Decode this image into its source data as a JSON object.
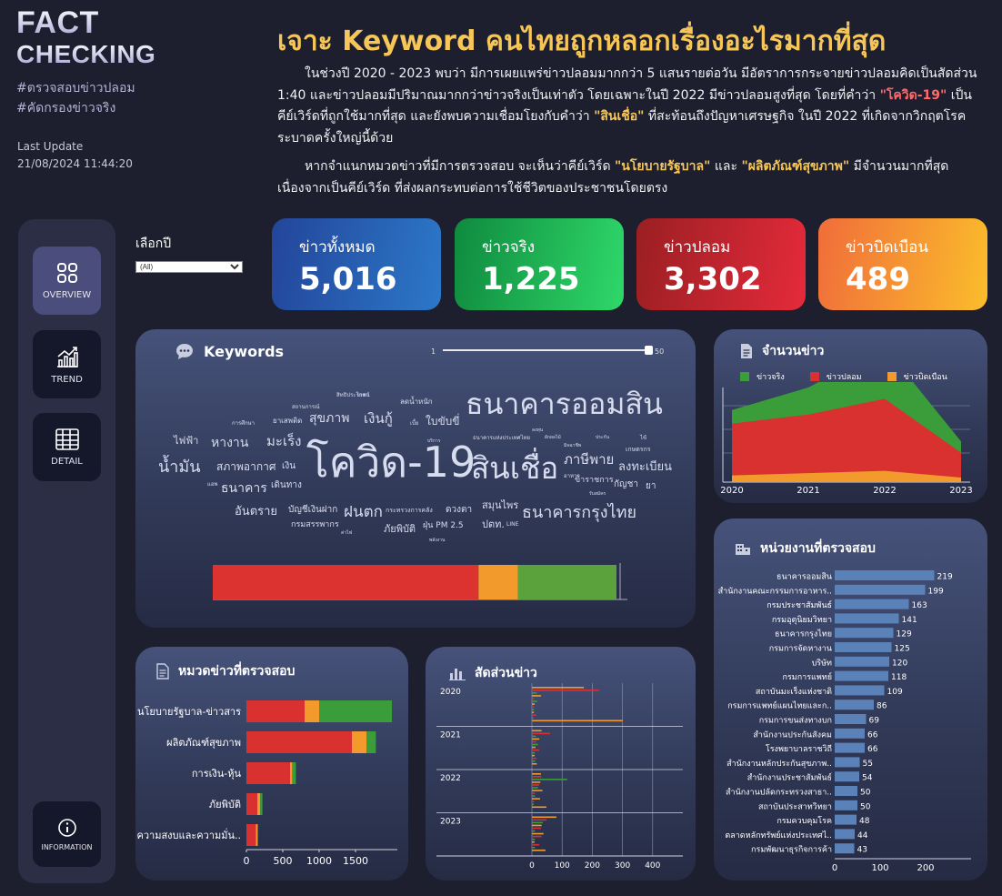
{
  "brand": {
    "line1": "FACT",
    "line2": "CHECKING",
    "tag1": "#ตรวจสอบข่าวปลอม",
    "tag2": "#คัดกรองข่าวจริง"
  },
  "update": {
    "label": "Last Update",
    "value": "21/08/2024 11:44:20"
  },
  "headline": "เจาะ Keyword คนไทยถูกหลอกเรื่องอะไรมากที่สุด",
  "para1": {
    "a": "ในช่วงปี 2020 - 2023 พบว่า มีการเผยแพร่ข่าวปลอมมากกว่า 5 แสนรายต่อวัน มีอัตราการกระจายข่าวปลอมคิดเป็นสัดส่วน 1:40 และข่าวปลอมมีปริมาณมากกว่าข่าวจริงเป็นเท่าตัว โดยเฉพาะในปี 2022 มีข่าวปลอมสูงที่สุด โดยที่คำว่า ",
    "k1": "\"โควิด-19\"",
    "b": " เป็นคีย์เวิร์ดที่ถูกใช้มากที่สุด และยังพบความเชื่อมโยงกับคำว่า ",
    "k2": "\"สินเชื่อ\"",
    "c": " ที่สะท้อนถึงปัญหาเศรษฐกิจ ในปี 2022 ที่เกิดจากวิกฤตโรคระบาดครั้งใหญ่นี้ด้วย"
  },
  "para2": {
    "a": "หากจำแนกหมวดข่าวที่มีการตรวจสอบ จะเห็นว่าคีย์เวิร์ด ",
    "k1": "\"นโยบายรัฐบาล\"",
    "b": " และ ",
    "k2": "\"ผลิตภัณฑ์สุขภาพ\"",
    "c": " มีจำนวนมากที่สุด เนื่องจากเป็นคีย์เวิร์ด ที่ส่งผลกระทบต่อการใช้ชีวิตของประชาชนโดยตรง"
  },
  "colors": {
    "accent": "#f6c659",
    "covid": "#ff6b6b",
    "real": "#3a9d3a",
    "fake": "#d93030",
    "distort": "#f39a2c"
  },
  "nav": [
    {
      "label": "OVERVIEW",
      "icon": "grid-icon"
    },
    {
      "label": "TREND",
      "icon": "trend-chart-icon"
    },
    {
      "label": "DETAIL",
      "icon": "table-icon"
    },
    {
      "label": "INFORMATION",
      "icon": "info-icon"
    }
  ],
  "filter": {
    "label": "เลือกปี",
    "selected": "(All)"
  },
  "kpis": [
    {
      "label": "ข่าวทั้งหมด",
      "value": "5,016"
    },
    {
      "label": "ข่าวจริง",
      "value": "1,225"
    },
    {
      "label": "ข่าวปลอม",
      "value": "3,302"
    },
    {
      "label": "ข่าวบิดเบือน",
      "value": "489"
    }
  ],
  "keywords": {
    "title": "Keywords",
    "slider_min": "1",
    "slider_max": "50",
    "cloud": [
      "ธนาคารออมสิน",
      "โควิด-19",
      "สินเชื่อ",
      "ธนาคารกรุงไทย",
      "ภาษีพาย",
      "ลงทะเบียน",
      "น้ำมัน",
      "หางาน",
      "มะเร็ง",
      "เงินกู้",
      "ใบขับขี่",
      "สุขภาพ",
      "ไฟฟ้า",
      "สภาพอากาศ",
      "เงิน",
      "ธนาคาร",
      "เดินทาง",
      "อันตราย",
      "บัญชีเงินฝาก",
      "ฝนตก",
      "ดวงตา",
      "สมุนไพร",
      "ปตท.",
      "ภัยพิบัติ",
      "ฝุ่น PM 2.5",
      "กรมสรรพากร",
      "กระทรวงการคลัง",
      "ลดน้ำหนัก",
      "ยาเสพติด",
      "ธนาคารแห่งประเทศไทย",
      "ข้าราชการ",
      "กัญชา",
      "ยา",
      "เกษตรกร",
      "LINE",
      "การศึกษา",
      "สิทธิประโยชน์",
      "ผักผลไม้",
      "มิจฉาชีพ",
      "ประกัน",
      "แอพ",
      "เบี้ย",
      "พลังงาน",
      "ค่าไฟ",
      "สถานการณ์",
      "บริการ",
      "รับสมัคร",
      "อาหาร",
      "ราคา",
      "ลงทุน",
      "ไข้"
    ],
    "bar": {
      "fake": 3302,
      "distort": 489,
      "real": 1225,
      "total": 5016
    }
  },
  "news_count": {
    "title": "จำนวนข่าว",
    "legend": [
      "ข่าวจริง",
      "ข่าวปลอม",
      "ข่าวบิดเบือน"
    ]
  },
  "categories": {
    "title": "หมวดข่าวที่ตรวจสอบ"
  },
  "ratio": {
    "title": "สัดส่วนข่าว"
  },
  "agencies": {
    "title": "หน่วยงานที่ตรวจสอบ"
  },
  "chart_data": [
    {
      "type": "area",
      "title": "จำนวนข่าว",
      "x": [
        "2020",
        "2021",
        "2022",
        "2023"
      ],
      "series": [
        {
          "name": "ข่าวจริง",
          "values": [
            60,
            120,
            230,
            50
          ]
        },
        {
          "name": "ข่าวปลอม",
          "values": [
            260,
            300,
            370,
            130
          ]
        },
        {
          "name": "ข่าวบิดเบือน",
          "values": [
            30,
            40,
            50,
            20
          ]
        }
      ]
    },
    {
      "type": "bar",
      "title": "หมวดข่าวที่ตรวจสอบ",
      "orientation": "horizontal",
      "categories": [
        "นโยบายรัฐบาล-ข่าวสาร",
        "ผลิตภัณฑ์สุขภาพ",
        "การเงิน-หุ้น",
        "ภัยพิบัติ",
        "ความสงบและความมั่น.."
      ],
      "series": [
        {
          "name": "ข่าวปลอม",
          "values": [
            800,
            1450,
            600,
            150,
            130
          ]
        },
        {
          "name": "ข่าวบิดเบือน",
          "values": [
            200,
            200,
            30,
            40,
            20
          ]
        },
        {
          "name": "ข่าวจริง",
          "values": [
            1000,
            130,
            50,
            30,
            10
          ]
        }
      ],
      "xticks": [
        "0",
        "500",
        "1000",
        "1500"
      ],
      "xlim": [
        0,
        2000
      ]
    },
    {
      "type": "bar",
      "title": "สัดส่วนข่าว",
      "rows": [
        "2020",
        "2021",
        "2022",
        "2023"
      ],
      "xticks": [
        "0",
        "100",
        "200",
        "300",
        "400"
      ],
      "xlim": [
        0,
        500
      ]
    },
    {
      "type": "bar",
      "title": "หน่วยงานที่ตรวจสอบ",
      "orientation": "horizontal",
      "categories": [
        "ธนาคารออมสิน",
        "สำนักงานคณะกรรมการอาหาร..",
        "กรมประชาสัมพันธ์",
        "กรมอุตุนิยมวิทยา",
        "ธนาคารกรุงไทย",
        "กรมการจัดหางาน",
        "บริษัท",
        "กรมการแพทย์",
        "สถาบันมะเร็งแห่งชาติ",
        "กรมการแพทย์แผนไทยและก..",
        "กรมการขนส่งทางบก",
        "สำนักงานประกันสังคม",
        "โรงพยาบาลราชวิถี",
        "สำนักงานหลักประกันสุขภาพ..",
        "สำนักงานประชาสัมพันธ์",
        "สำนักงานปลัดกระทรวงสาธา..",
        "สถาบันประสาทวิทยา",
        "กรมควบคุมโรค",
        "ตลาดหลักทรัพย์แห่งประเทศไ..",
        "กรมพัฒนาธุรกิจการค้า"
      ],
      "values": [
        219,
        199,
        163,
        141,
        129,
        125,
        120,
        118,
        109,
        86,
        69,
        66,
        66,
        55,
        54,
        50,
        50,
        48,
        44,
        43
      ],
      "xticks": [
        "0",
        "100",
        "200"
      ],
      "xlim": [
        0,
        260
      ]
    }
  ]
}
